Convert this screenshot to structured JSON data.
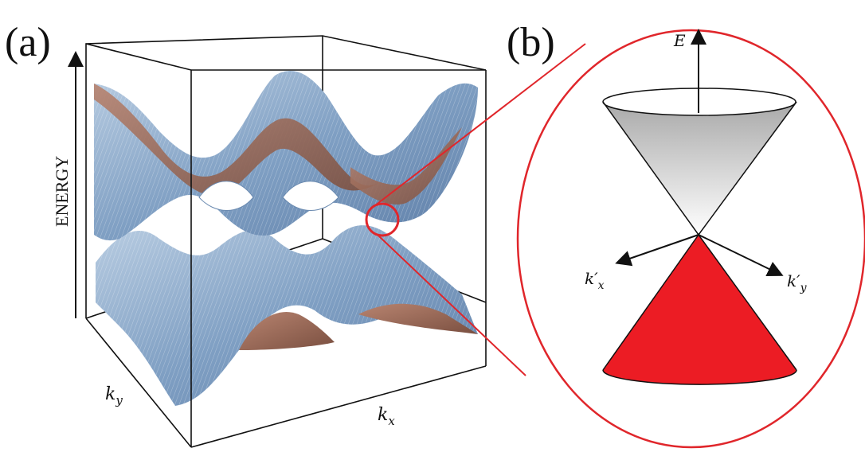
{
  "panel_a": {
    "label": "(a)",
    "energy_axis_label": "ENERGY",
    "kx_label": "k",
    "kx_sub": "x",
    "ky_label": "k",
    "ky_sub": "y"
  },
  "panel_b": {
    "label": "(b)",
    "energy_label": "E",
    "kx_prime_label": "k′",
    "kx_prime_sub": "x",
    "ky_prime_label": "k′",
    "ky_prime_sub": "y"
  },
  "colors": {
    "outline": "#111111",
    "highlight_red": "#e0262b",
    "lower_cone": "#ec1c24",
    "band_blue": "#8aa8c8",
    "band_brown": "#9a6a58"
  }
}
